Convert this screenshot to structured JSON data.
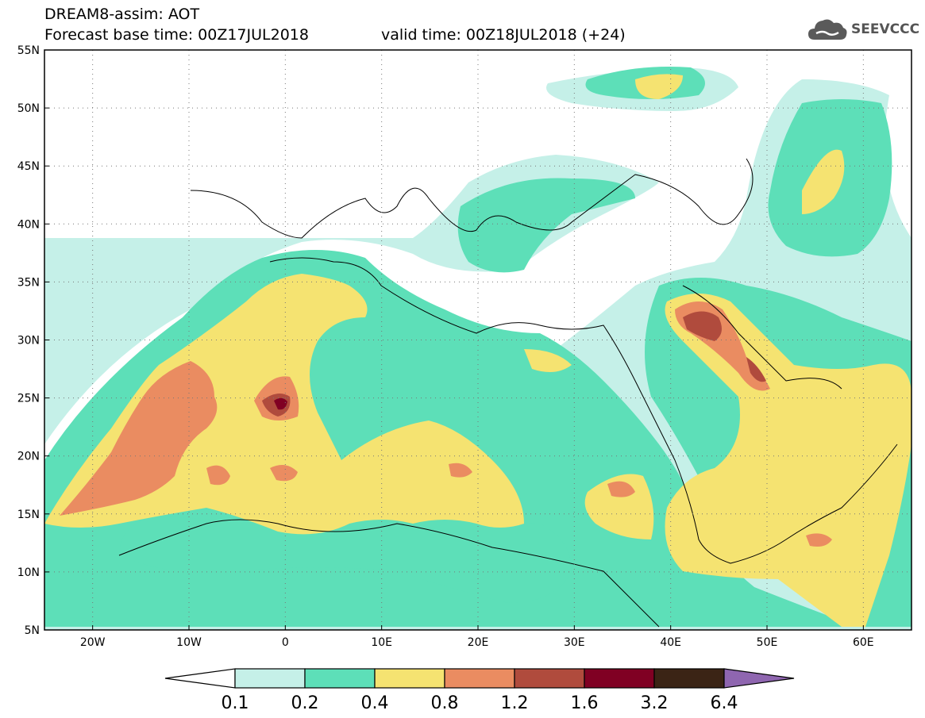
{
  "header": {
    "title": "DREAM8-assim: AOT",
    "base_time": "Forecast base time: 00Z17JUL2018",
    "valid_time": "valid time: 00Z18JUL2018 (+24)",
    "logo_text": "SEEVCCC",
    "logo_icon": "cloud-icon"
  },
  "map": {
    "lat_labels": [
      "55N",
      "50N",
      "45N",
      "40N",
      "35N",
      "30N",
      "25N",
      "20N",
      "15N",
      "10N",
      "5N"
    ],
    "lat_values": [
      55,
      50,
      45,
      40,
      35,
      30,
      25,
      20,
      15,
      10,
      5
    ],
    "lon_labels": [
      "20W",
      "10W",
      "0",
      "10E",
      "20E",
      "30E",
      "40E",
      "50E",
      "60E"
    ],
    "lon_values": [
      -20,
      -10,
      0,
      10,
      20,
      30,
      40,
      50,
      60
    ],
    "lon_range": [
      -25,
      65
    ],
    "lat_range": [
      5,
      55
    ],
    "grid": "dotted"
  },
  "colorbar": {
    "labels": [
      "0.1",
      "0.2",
      "0.4",
      "0.8",
      "1.2",
      "1.6",
      "3.2",
      "6.4"
    ],
    "colors": [
      "#ffffff",
      "#c5f0e8",
      "#5ddfb8",
      "#f5e371",
      "#ea8c61",
      "#b04b3d",
      "#800023",
      "#3b2415",
      "#8f66b0"
    ]
  },
  "fields": {
    "c1": "#c5f0e8",
    "c2": "#5ddfb8",
    "c3": "#f5e371",
    "c4": "#ea8c61",
    "c5": "#b04b3d",
    "c6": "#800023"
  }
}
